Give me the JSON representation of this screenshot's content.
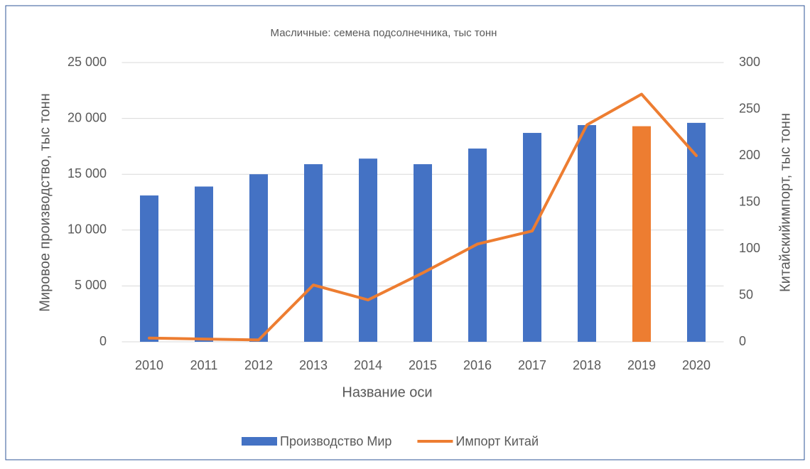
{
  "chart_data": {
    "type": "bar-line",
    "title": "Масличные: семена подсолнечника, тыс тонн",
    "x_label": "Название оси",
    "y_label": "Мировое производство, тыс тонн",
    "y2_label": "Китайскийимпорт, тыс  тонн",
    "categories": [
      "2010",
      "2011",
      "2012",
      "2013",
      "2014",
      "2015",
      "2016",
      "2017",
      "2018",
      "2019",
      "2020"
    ],
    "series": [
      {
        "name": "Производство Мир",
        "type": "bar",
        "color": "#4472c4",
        "colors": [
          "#4472c4",
          "#4472c4",
          "#4472c4",
          "#4472c4",
          "#4472c4",
          "#4472c4",
          "#4472c4",
          "#4472c4",
          "#4472c4",
          "#ed7d31",
          "#4472c4"
        ],
        "values": [
          13100,
          13900,
          15000,
          15900,
          16400,
          15900,
          17300,
          18700,
          19400,
          19300,
          19600
        ]
      },
      {
        "name": "Импорт Китай",
        "type": "line",
        "axis": "y2",
        "color": "#ed7d31",
        "values": [
          4,
          3,
          2,
          61,
          45,
          74,
          105,
          119,
          233,
          266,
          200
        ]
      }
    ],
    "ylim": [
      0,
      25000
    ],
    "yticks": [
      0,
      {
        "value": 5000,
        "label": "5 000"
      },
      {
        "value": 10000,
        "label": "10 000"
      },
      {
        "value": 15000,
        "label": "15 000"
      },
      {
        "value": 20000,
        "label": "20 000"
      },
      {
        "value": 25000,
        "label": "25 000"
      }
    ],
    "y2lim": [
      0,
      300
    ],
    "y2ticks": [
      0,
      50,
      100,
      150,
      200,
      250,
      300
    ],
    "grid": true,
    "legend": "bottom"
  }
}
